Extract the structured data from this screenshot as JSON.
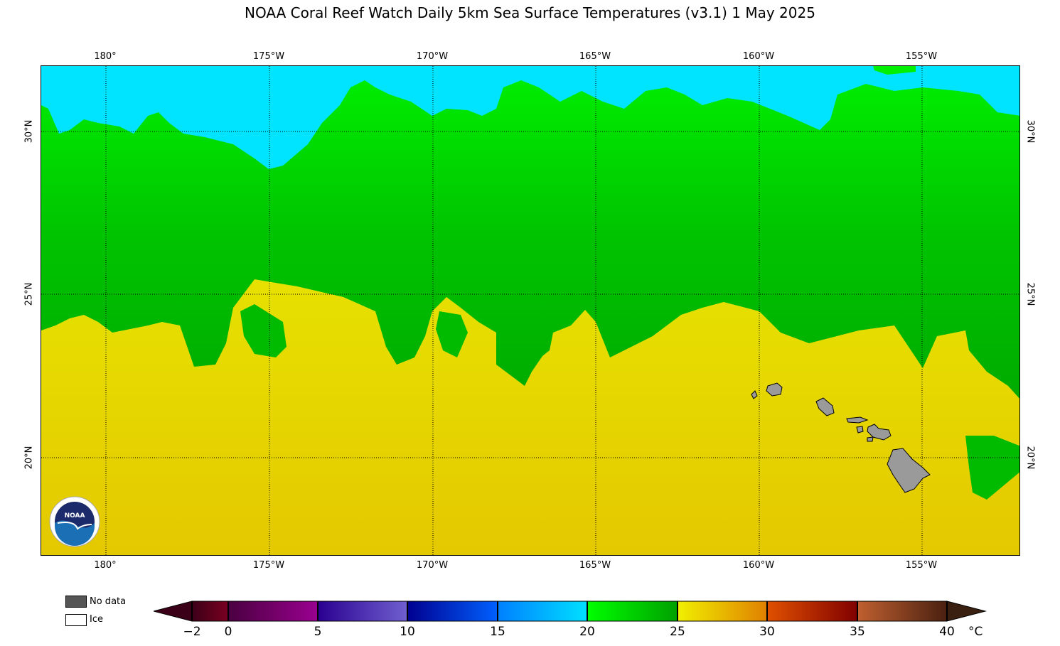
{
  "title": "NOAA Coral Reef Watch Daily 5km Sea Surface Temperatures  (v3.1)   1 May 2025",
  "map": {
    "lon_labels": [
      "180°",
      "175°W",
      "170°W",
      "165°W",
      "160°W",
      "155°W"
    ],
    "lat_labels": [
      "30°N",
      "25°N",
      "20°N"
    ],
    "land_color": "#9a9a9a",
    "colors": {
      "cool": "#00e4ff",
      "green": "#00f000",
      "deep_green": "#00bb00",
      "yellow": "#eaf000",
      "warm_yellow": "#e6c800"
    }
  },
  "legend": {
    "no_data_label": "No data",
    "ice_label": "Ice",
    "no_data_color": "#555555",
    "ice_color": "#ffffff"
  },
  "colorbar": {
    "labels": [
      "−2",
      "0",
      "5",
      "10",
      "15",
      "20",
      "25",
      "30",
      "35",
      "40"
    ],
    "unit": "°C"
  },
  "logo": {
    "text": "NOAA"
  }
}
